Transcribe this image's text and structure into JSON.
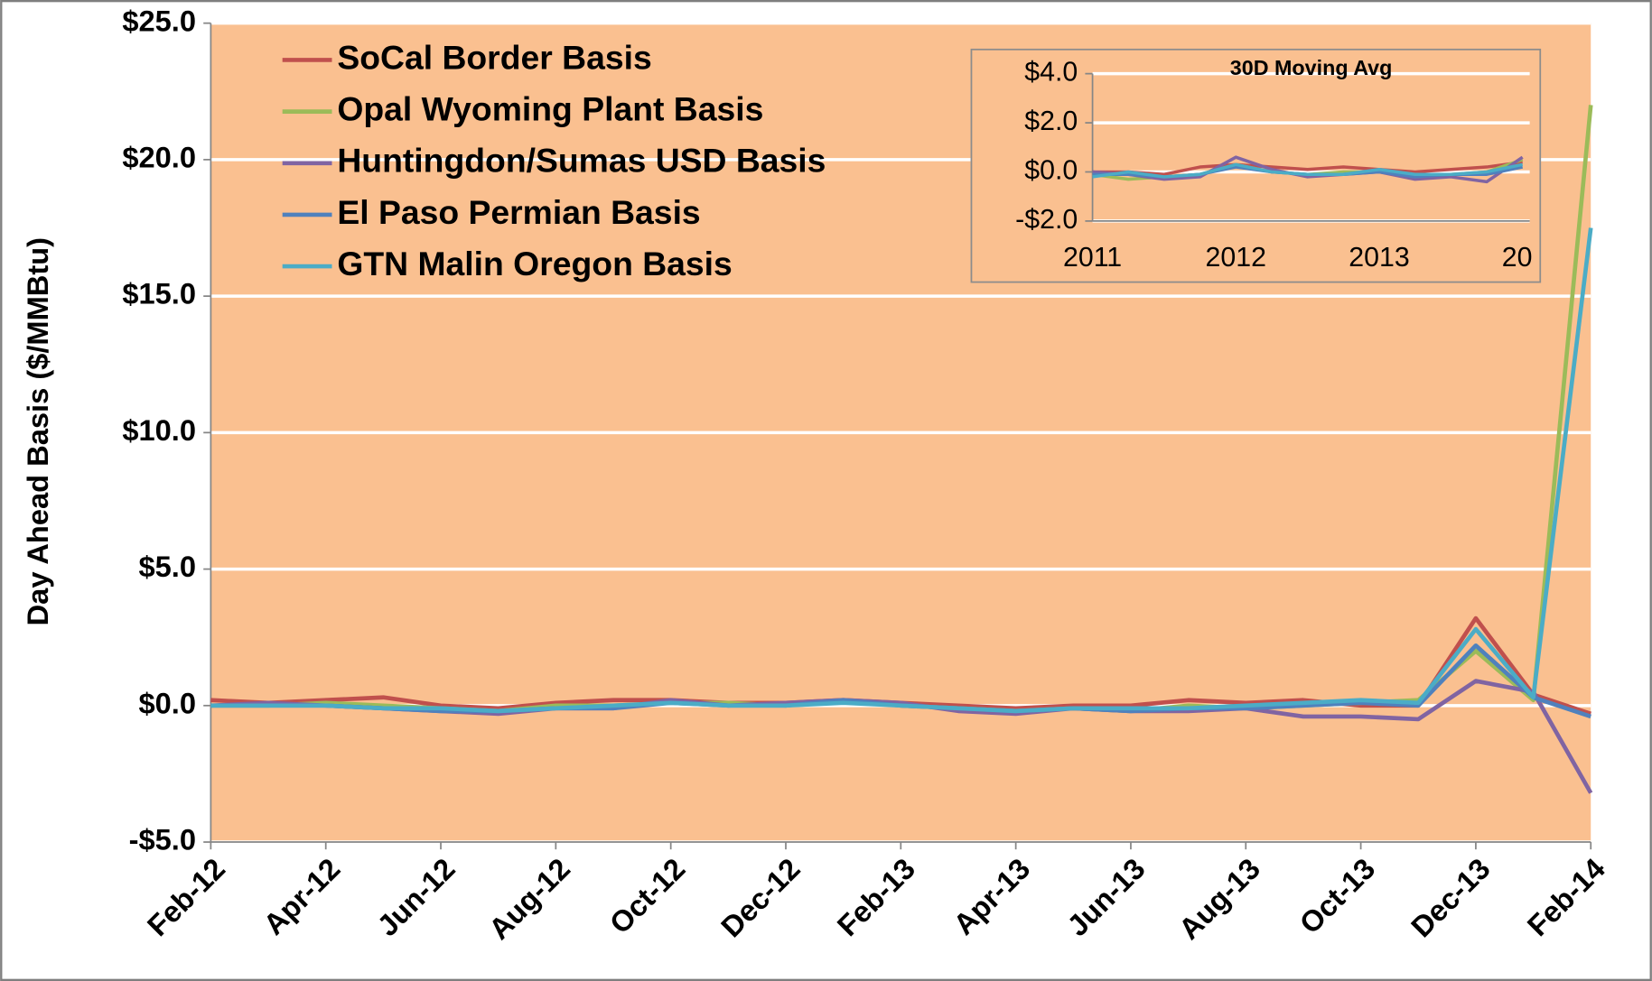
{
  "chart_data": [
    {
      "type": "line",
      "y_label": "Day Ahead Basis ($/MMBtu)",
      "categories": [
        "Feb-12",
        null,
        "Apr-12",
        null,
        "Jun-12",
        null,
        "Aug-12",
        null,
        "Oct-12",
        null,
        "Dec-12",
        null,
        "Feb-13",
        null,
        "Apr-13",
        null,
        "Jun-13",
        null,
        "Aug-13",
        null,
        "Oct-13",
        null,
        "Dec-13",
        null,
        "Feb-14"
      ],
      "series": [
        {
          "name": "SoCal Border Basis",
          "color": "#c0504d",
          "values": [
            0.2,
            0.1,
            0.2,
            0.3,
            0.0,
            -0.1,
            0.1,
            0.2,
            0.2,
            0.1,
            0.1,
            0.2,
            0.1,
            0.0,
            -0.1,
            0.0,
            0.0,
            0.2,
            0.1,
            0.2,
            0.0,
            0.0,
            3.2,
            0.4,
            -0.3
          ]
        },
        {
          "name": "Opal Wyoming Plant Basis",
          "color": "#9bbb59",
          "values": [
            0.0,
            0.0,
            0.1,
            0.0,
            -0.1,
            -0.2,
            0.0,
            0.0,
            0.1,
            0.1,
            0.0,
            0.2,
            0.0,
            -0.1,
            -0.2,
            -0.1,
            -0.2,
            0.0,
            -0.1,
            0.0,
            0.1,
            0.2,
            2.0,
            0.2,
            22.0
          ]
        },
        {
          "name": "Huntingdon/Sumas USD Basis",
          "color": "#8064a2",
          "values": [
            0.0,
            0.1,
            0.0,
            -0.1,
            -0.2,
            -0.3,
            -0.1,
            -0.1,
            0.2,
            0.0,
            0.1,
            0.2,
            0.1,
            -0.2,
            -0.3,
            -0.1,
            -0.2,
            -0.2,
            -0.1,
            -0.4,
            -0.4,
            -0.5,
            0.9,
            0.5,
            -3.2
          ]
        },
        {
          "name": "El Paso Permian Basis",
          "color": "#4f81bd",
          "values": [
            0.0,
            0.0,
            0.0,
            -0.1,
            -0.2,
            -0.2,
            -0.1,
            -0.1,
            0.1,
            0.0,
            0.0,
            0.2,
            0.0,
            -0.1,
            -0.2,
            -0.1,
            -0.2,
            -0.1,
            -0.1,
            0.0,
            0.1,
            0.0,
            2.2,
            0.3,
            -0.4
          ]
        },
        {
          "name": "GTN Malin Oregon Basis",
          "color": "#4bacc6",
          "values": [
            0.0,
            0.0,
            0.0,
            -0.1,
            -0.1,
            -0.2,
            -0.1,
            0.0,
            0.1,
            0.0,
            0.0,
            0.1,
            0.0,
            -0.1,
            -0.2,
            -0.1,
            -0.1,
            -0.1,
            0.0,
            0.1,
            0.2,
            0.1,
            2.8,
            0.3,
            17.5
          ]
        }
      ],
      "ylim": [
        -5,
        25
      ],
      "yticks": [
        {
          "value": -5,
          "label": "-$5.0"
        },
        {
          "value": 0,
          "label": "$0.0"
        },
        {
          "value": 5,
          "label": "$5.0"
        },
        {
          "value": 10,
          "label": "$10.0"
        },
        {
          "value": 15,
          "label": "$15.0"
        },
        {
          "value": 20,
          "label": "$20.0"
        },
        {
          "value": 25,
          "label": "$25.0"
        }
      ],
      "grid": true,
      "legend": "top-left",
      "background": "#fac090"
    },
    {
      "type": "line",
      "title": "30D Moving Avg",
      "x": [
        2011.0,
        2011.25,
        2011.5,
        2011.75,
        2012.0,
        2012.25,
        2012.5,
        2012.75,
        2013.0,
        2013.25,
        2013.5,
        2013.75,
        2014.0
      ],
      "series": [
        {
          "name": "SoCal Border Basis",
          "color": "#c0504d",
          "values": [
            0.0,
            0.0,
            -0.1,
            0.2,
            0.3,
            0.2,
            0.1,
            0.2,
            0.1,
            0.0,
            0.1,
            0.2,
            0.4
          ]
        },
        {
          "name": "Opal Wyoming Plant Basis",
          "color": "#9bbb59",
          "values": [
            -0.1,
            -0.3,
            -0.2,
            -0.1,
            0.3,
            0.0,
            -0.1,
            0.0,
            0.0,
            -0.2,
            -0.1,
            0.0,
            0.5
          ]
        },
        {
          "name": "Huntingdon/Sumas USD Basis",
          "color": "#8064a2",
          "values": [
            0.0,
            -0.1,
            -0.3,
            -0.2,
            0.6,
            0.1,
            -0.2,
            -0.1,
            0.0,
            -0.3,
            -0.2,
            -0.4,
            0.6
          ]
        },
        {
          "name": "El Paso Permian Basis",
          "color": "#4f81bd",
          "values": [
            -0.1,
            -0.1,
            -0.2,
            -0.1,
            0.2,
            0.0,
            -0.1,
            -0.1,
            0.0,
            -0.2,
            -0.1,
            -0.1,
            0.2
          ]
        },
        {
          "name": "GTN Malin Oregon Basis",
          "color": "#4bacc6",
          "values": [
            -0.2,
            0.0,
            -0.2,
            -0.1,
            0.3,
            0.0,
            -0.1,
            -0.1,
            0.1,
            -0.1,
            -0.1,
            0.0,
            0.3
          ]
        }
      ],
      "xlim": [
        2011,
        2014.05
      ],
      "xticks": [
        2011,
        2012,
        2013,
        {
          "value": 2014,
          "label": "20"
        }
      ],
      "ylim": [
        -2,
        4
      ],
      "yticks": [
        {
          "value": -2,
          "label": "-$2.0"
        },
        {
          "value": 0,
          "label": "$0.0"
        },
        {
          "value": 2,
          "label": "$2.0"
        },
        {
          "value": 4,
          "label": "$4.0"
        }
      ],
      "grid": true,
      "background": "#fac090"
    }
  ]
}
